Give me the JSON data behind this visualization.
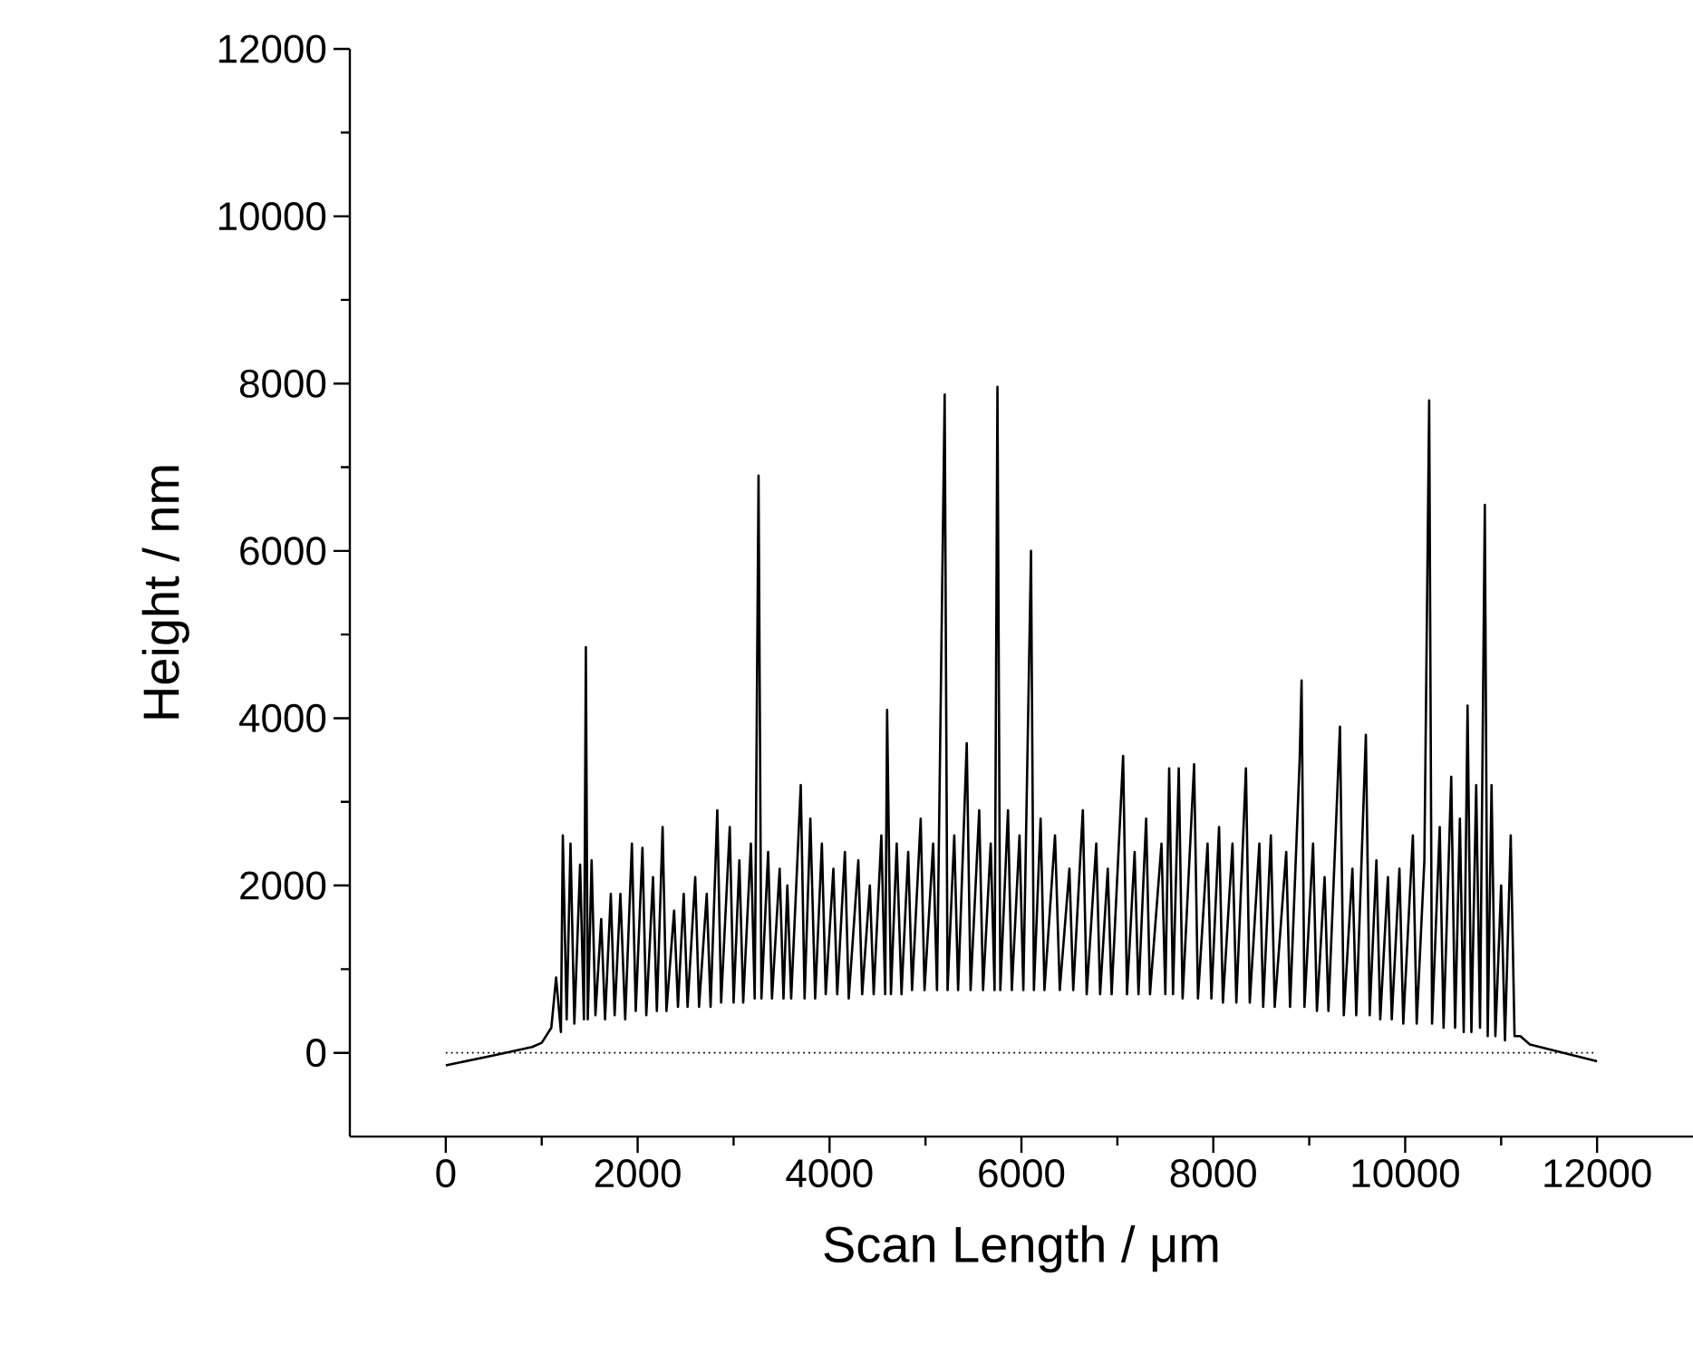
{
  "chart_data": {
    "type": "line",
    "xlabel": "Scan Length / μm",
    "ylabel": "Height / nm",
    "xlim": [
      -1000,
      13000
    ],
    "xticks": [
      0,
      2000,
      4000,
      6000,
      8000,
      10000,
      12000
    ],
    "ylim": [
      -1000,
      12000
    ],
    "yticks": [
      0,
      2000,
      4000,
      6000,
      8000,
      10000,
      12000
    ],
    "grid": false,
    "marker": "none",
    "line_style": "solid",
    "ref_lines": [
      {
        "axis": "y",
        "value": 0,
        "line_style": "dotted",
        "color": "#000000"
      }
    ],
    "series": [
      {
        "color": "#000000",
        "x": [
          0,
          500,
          900,
          1000,
          1100,
          1150,
          1200,
          1220,
          1260,
          1300,
          1340,
          1400,
          1440,
          1460,
          1480,
          1520,
          1560,
          1620,
          1660,
          1720,
          1760,
          1820,
          1870,
          1940,
          1980,
          2050,
          2090,
          2160,
          2200,
          2260,
          2300,
          2380,
          2420,
          2480,
          2520,
          2600,
          2640,
          2720,
          2760,
          2830,
          2870,
          2960,
          3000,
          3060,
          3100,
          3180,
          3220,
          3260,
          3290,
          3360,
          3400,
          3480,
          3520,
          3560,
          3600,
          3700,
          3740,
          3800,
          3850,
          3920,
          3960,
          4040,
          4080,
          4160,
          4200,
          4300,
          4340,
          4420,
          4460,
          4540,
          4580,
          4600,
          4640,
          4700,
          4750,
          4820,
          4860,
          4950,
          4990,
          5080,
          5120,
          5200,
          5230,
          5300,
          5340,
          5430,
          5470,
          5560,
          5600,
          5680,
          5720,
          5750,
          5780,
          5860,
          5900,
          5980,
          6020,
          6100,
          6130,
          6200,
          6240,
          6350,
          6400,
          6500,
          6540,
          6640,
          6680,
          6780,
          6820,
          6900,
          6940,
          7060,
          7100,
          7180,
          7220,
          7300,
          7340,
          7460,
          7500,
          7540,
          7580,
          7640,
          7680,
          7800,
          7840,
          7940,
          7980,
          8060,
          8100,
          8200,
          8240,
          8340,
          8380,
          8480,
          8520,
          8600,
          8640,
          8760,
          8800,
          8900,
          8920,
          8950,
          9040,
          9080,
          9160,
          9200,
          9320,
          9360,
          9450,
          9490,
          9590,
          9630,
          9700,
          9740,
          9820,
          9860,
          9940,
          9980,
          10080,
          10120,
          10200,
          10250,
          10280,
          10360,
          10400,
          10480,
          10520,
          10570,
          10610,
          10650,
          10690,
          10740,
          10780,
          10830,
          10860,
          10900,
          10940,
          11000,
          11040,
          11100,
          11140,
          11200,
          11300,
          12000
        ],
        "values": [
          -150,
          -30,
          70,
          120,
          300,
          900,
          250,
          2600,
          400,
          2500,
          350,
          2250,
          400,
          4850,
          400,
          2300,
          450,
          1600,
          400,
          1900,
          450,
          1900,
          400,
          2500,
          500,
          2450,
          450,
          2100,
          500,
          2700,
          500,
          1700,
          550,
          1900,
          550,
          2100,
          550,
          1900,
          550,
          2900,
          600,
          2700,
          600,
          2300,
          600,
          2500,
          650,
          6900,
          650,
          2400,
          650,
          2200,
          650,
          2000,
          650,
          3200,
          650,
          2800,
          650,
          2500,
          700,
          2200,
          700,
          2400,
          650,
          2300,
          700,
          2000,
          700,
          2600,
          700,
          4100,
          700,
          2500,
          700,
          2400,
          750,
          2800,
          750,
          2500,
          750,
          7870,
          750,
          2600,
          750,
          3700,
          750,
          2900,
          750,
          2500,
          750,
          7960,
          750,
          2900,
          750,
          2600,
          750,
          6000,
          750,
          2800,
          750,
          2600,
          750,
          2200,
          750,
          2900,
          700,
          2500,
          700,
          2200,
          700,
          3550,
          700,
          2400,
          700,
          2800,
          700,
          2500,
          700,
          3400,
          700,
          3400,
          650,
          3450,
          650,
          2500,
          650,
          2700,
          600,
          2500,
          600,
          3400,
          600,
          2500,
          550,
          2600,
          550,
          2400,
          550,
          3500,
          4450,
          550,
          2500,
          500,
          2100,
          500,
          3900,
          450,
          2200,
          450,
          3800,
          450,
          2300,
          400,
          2100,
          400,
          2200,
          350,
          2600,
          350,
          2300,
          7800,
          350,
          2700,
          300,
          3300,
          300,
          2800,
          250,
          4150,
          250,
          3200,
          300,
          6550,
          200,
          3200,
          200,
          2000,
          150,
          2600,
          200,
          200,
          100,
          -100
        ]
      }
    ]
  }
}
